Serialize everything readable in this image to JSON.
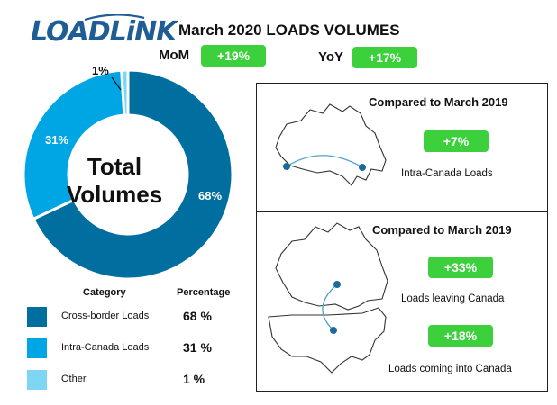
{
  "brand": {
    "logo_text": "LOADLiNK"
  },
  "header": {
    "title": "March 2020 LOADS VOLUMES",
    "mom_label": "MoM",
    "mom_value": "+19%",
    "yoy_label": "YoY",
    "yoy_value": "+17%"
  },
  "donut": {
    "center_line1": "Total",
    "center_line2": "Volumes"
  },
  "legend": {
    "category_header": "Category",
    "percentage_header": "Percentage"
  },
  "chart_data": {
    "type": "pie",
    "variant": "donut",
    "categories": [
      "Cross-border Loads",
      "Intra-Canada Loads",
      "Other"
    ],
    "values": [
      68,
      31,
      1
    ],
    "value_labels": [
      "68%",
      "31%",
      "1%"
    ],
    "legend_values": [
      "68 %",
      "31 %",
      "1 %"
    ],
    "colors": [
      "#006f9f",
      "#00a5e4",
      "#7fd6f4"
    ]
  },
  "comparison": {
    "intra": {
      "title": "Compared to March 2019",
      "value": "+7%",
      "caption": "Intra-Canada Loads"
    },
    "cross": {
      "title": "Compared to March 2019",
      "leaving_value": "+33%",
      "leaving_caption": "Loads leaving Canada",
      "coming_value": "+18%",
      "coming_caption": "Loads coming into Canada"
    }
  },
  "colors": {
    "pill_green": "#3cd13c",
    "brand_blue": "#1f5d95",
    "route_line": "#4fa3c7",
    "route_dot": "#1a6a9a"
  }
}
